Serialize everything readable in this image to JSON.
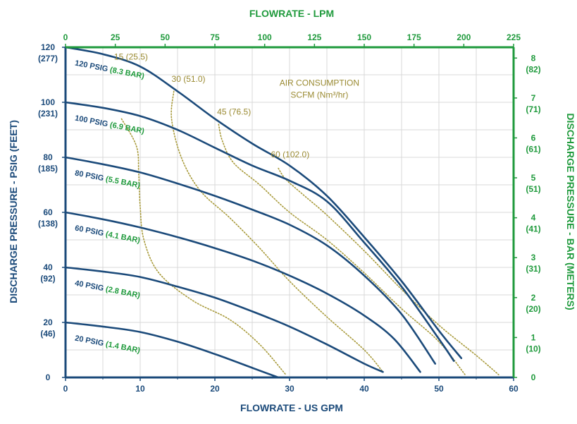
{
  "chart_data": {
    "type": "line",
    "colors": {
      "curve": "#1b4a7a",
      "air": "#a89a3a",
      "axis_left": "#1b4a7a",
      "axis_right": "#1f9a3c",
      "grid": "#d9d9d9"
    },
    "x_bottom": {
      "title": "FLOWRATE - US GPM",
      "range": [
        0,
        60
      ],
      "ticks": [
        "0",
        "10",
        "20",
        "30",
        "40",
        "50",
        "60"
      ]
    },
    "x_top": {
      "title": "FLOWRATE - LPM",
      "range": [
        0,
        225
      ],
      "ticks": [
        "0",
        "25",
        "50",
        "75",
        "100",
        "125",
        "150",
        "175",
        "200",
        "225"
      ]
    },
    "y_left": {
      "title": "DISCHARGE PRESSURE - PSIG (FEET)",
      "range": [
        0,
        120
      ],
      "ticks": [
        {
          "value": 0,
          "main": "0",
          "sub": ""
        },
        {
          "value": 20,
          "main": "20",
          "sub": "(46)"
        },
        {
          "value": 40,
          "main": "40",
          "sub": "(92)"
        },
        {
          "value": 60,
          "main": "60",
          "sub": "(138)"
        },
        {
          "value": 80,
          "main": "80",
          "sub": "(185)"
        },
        {
          "value": 100,
          "main": "100",
          "sub": "(231)"
        },
        {
          "value": 120,
          "main": "120",
          "sub": "(277)"
        }
      ]
    },
    "y_right": {
      "title": "DISCHARGE PRESSURE - BAR (METERS)",
      "range": [
        0,
        8.27
      ],
      "ticks": [
        {
          "value": 0,
          "main": "0",
          "sub": ""
        },
        {
          "value": 1,
          "main": "1",
          "sub": "(10)"
        },
        {
          "value": 2,
          "main": "2",
          "sub": "(20)"
        },
        {
          "value": 3,
          "main": "3",
          "sub": "(31)"
        },
        {
          "value": 4,
          "main": "4",
          "sub": "(41)"
        },
        {
          "value": 5,
          "main": "5",
          "sub": "(51)"
        },
        {
          "value": 6,
          "main": "6",
          "sub": "(61)"
        },
        {
          "value": 7,
          "main": "7",
          "sub": "(71)"
        },
        {
          "value": 8,
          "main": "8",
          "sub": "(82)"
        }
      ]
    },
    "grid": true,
    "series": [
      {
        "psig": "20 PSIG",
        "bar": "(1.4 BAR)",
        "label_at": [
          1.2,
          13.5
        ],
        "points": [
          [
            0,
            20
          ],
          [
            5,
            18.5
          ],
          [
            10,
            16.5
          ],
          [
            15,
            13
          ],
          [
            20,
            8.5
          ],
          [
            25,
            3.5
          ],
          [
            28.5,
            0
          ]
        ]
      },
      {
        "psig": "40 PSIG",
        "bar": "(2.8 BAR)",
        "label_at": [
          1.2,
          33.5
        ],
        "points": [
          [
            0,
            40
          ],
          [
            5,
            38.5
          ],
          [
            10,
            36.5
          ],
          [
            15,
            33
          ],
          [
            20,
            29
          ],
          [
            25,
            24
          ],
          [
            30,
            18.5
          ],
          [
            35,
            12
          ],
          [
            40,
            5
          ],
          [
            42.5,
            2
          ]
        ]
      },
      {
        "psig": "60 PSIG",
        "bar": "(4.1 BAR)",
        "label_at": [
          1.2,
          53.5
        ],
        "points": [
          [
            0,
            60
          ],
          [
            5,
            57.5
          ],
          [
            10,
            54.5
          ],
          [
            15,
            51
          ],
          [
            20,
            47
          ],
          [
            25,
            42.5
          ],
          [
            30,
            37
          ],
          [
            35,
            30.5
          ],
          [
            40,
            22.5
          ],
          [
            44,
            14
          ],
          [
            47.5,
            2
          ]
        ]
      },
      {
        "psig": "80 PSIG",
        "bar": "(5.5 BAR)",
        "label_at": [
          1.2,
          73.5
        ],
        "points": [
          [
            0,
            80
          ],
          [
            5,
            77.5
          ],
          [
            10,
            74.5
          ],
          [
            15,
            70.5
          ],
          [
            20,
            66
          ],
          [
            25,
            61
          ],
          [
            30,
            55.5
          ],
          [
            35,
            48
          ],
          [
            40,
            37
          ],
          [
            45,
            23
          ],
          [
            49.5,
            5
          ]
        ]
      },
      {
        "psig": "100 PSIG",
        "bar": "(6.9 BAR)",
        "label_at": [
          1.2,
          93.5
        ],
        "points": [
          [
            0,
            100
          ],
          [
            5,
            98
          ],
          [
            10,
            95
          ],
          [
            15,
            90
          ],
          [
            20,
            83.5
          ],
          [
            25,
            77
          ],
          [
            30,
            71.5
          ],
          [
            35,
            64
          ],
          [
            40,
            49
          ],
          [
            45,
            33
          ],
          [
            50,
            14
          ],
          [
            52,
            6
          ]
        ]
      },
      {
        "psig": "120 PSIG",
        "bar": "(8.3 BAR)",
        "label_at": [
          1.2,
          113.5
        ],
        "points": [
          [
            0,
            120
          ],
          [
            5,
            117.5
          ],
          [
            10,
            113
          ],
          [
            15,
            104
          ],
          [
            20,
            94
          ],
          [
            25,
            85
          ],
          [
            30,
            77
          ],
          [
            35,
            66
          ],
          [
            40,
            51
          ],
          [
            45,
            35
          ],
          [
            50,
            17
          ],
          [
            53,
            7
          ]
        ]
      }
    ],
    "air_consumption": {
      "title_line1": "AIR CONSUMPTION",
      "title_line2": "SCFM (Nm³/hr)",
      "title_at": [
        34,
        106
      ],
      "lines": [
        {
          "label": "15 (25.5)",
          "label_at": [
            6.5,
            115.5
          ],
          "points": [
            [
              7.5,
              94
            ],
            [
              9.5,
              84
            ],
            [
              9.8,
              74
            ],
            [
              10,
              62
            ],
            [
              10.5,
              50
            ],
            [
              12.5,
              38
            ],
            [
              17,
              28
            ],
            [
              22,
              21
            ],
            [
              26,
              12
            ],
            [
              29.5,
              1
            ]
          ]
        },
        {
          "label": "30 (51.0)",
          "label_at": [
            14.2,
            107.5
          ],
          "points": [
            [
              14.5,
              104
            ],
            [
              14.2,
              94
            ],
            [
              15.5,
              80
            ],
            [
              18,
              68
            ],
            [
              22,
              58
            ],
            [
              26,
              47
            ],
            [
              30,
              35
            ],
            [
              35,
              22
            ],
            [
              40,
              10
            ],
            [
              42.5,
              2
            ]
          ]
        },
        {
          "label": "45 (76.5)",
          "label_at": [
            20.3,
            95.5
          ],
          "points": [
            [
              20.5,
              92
            ],
            [
              21,
              86
            ],
            [
              22.5,
              78
            ],
            [
              26,
              70
            ],
            [
              30,
              60
            ],
            [
              35,
              50
            ],
            [
              40,
              38
            ],
            [
              45,
              25
            ],
            [
              50,
              13
            ],
            [
              53.5,
              1
            ]
          ]
        },
        {
          "label": "60 (102.0)",
          "label_at": [
            27.5,
            80
          ],
          "points": [
            [
              28.5,
              76
            ],
            [
              29.5,
              72
            ],
            [
              32,
              66
            ],
            [
              35,
              59
            ],
            [
              40,
              46
            ],
            [
              45,
              32
            ],
            [
              50,
              19
            ],
            [
              55,
              8
            ],
            [
              58,
              1
            ]
          ]
        }
      ]
    }
  }
}
